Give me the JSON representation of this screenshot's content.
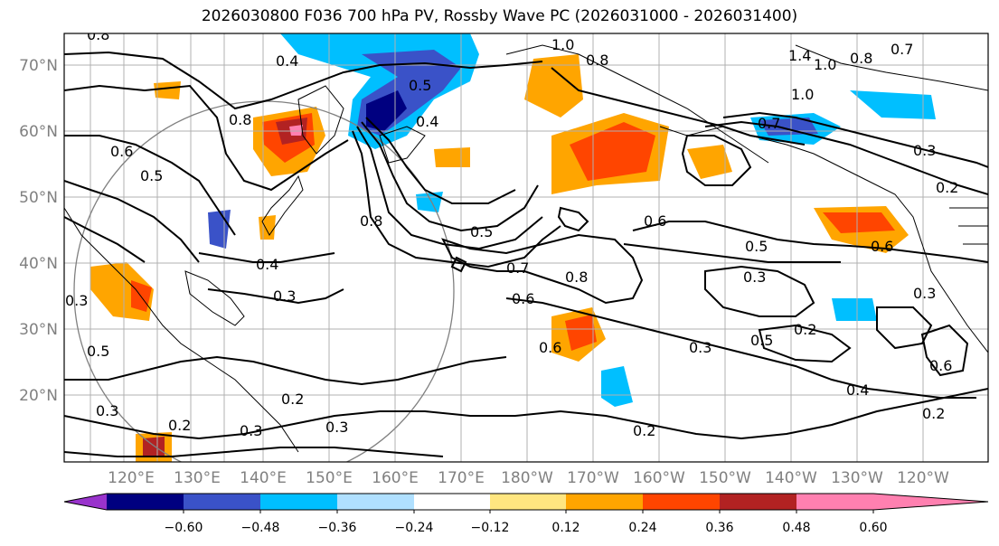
{
  "title": "2026030800 F036 700 hPa PV, Rossby Wave PC (2026031000 - 2026031400)",
  "lat_labels": [
    "70°N",
    "60°N",
    "50°N",
    "40°N",
    "30°N",
    "20°N"
  ],
  "lon_labels": [
    "120°E",
    "130°E",
    "140°E",
    "150°E",
    "160°E",
    "170°E",
    "180°W",
    "170°W",
    "160°W",
    "150°W",
    "140°W",
    "130°W",
    "120°W"
  ],
  "colorbar": {
    "ticks": [
      "−0.60",
      "−0.48",
      "−0.36",
      "−0.24",
      "−0.12",
      "0.12",
      "0.24",
      "0.36",
      "0.48",
      "0.60"
    ],
    "colors": [
      "#9933cc",
      "#000080",
      "#3a52c8",
      "#00bfff",
      "#b0e0ff",
      "#ffffff",
      "#ffe680",
      "#ffa500",
      "#ff4500",
      "#b22222",
      "#ff80b0"
    ]
  },
  "contour_labels": [
    "0.8",
    "0.4",
    "0.5",
    "0.4",
    "0.8",
    "1.0",
    "0.8",
    "1.4",
    "1.0",
    "0.8",
    "0.7",
    "1.0",
    "0.7",
    "0.6",
    "0.5",
    "0.3",
    "0.2",
    "0.6",
    "0.5",
    "0.7",
    "0.8",
    "0.6",
    "0.4",
    "0.3",
    "0.6",
    "0.5",
    "0.2",
    "0.3",
    "0.3",
    "0.6",
    "0.4",
    "0.2",
    "0.2",
    "0.2",
    "0.3",
    "0.3",
    "0.5",
    "0.5",
    "0.3",
    "0.8",
    "0.2",
    "0.6",
    "0.3",
    "0.3"
  ]
}
